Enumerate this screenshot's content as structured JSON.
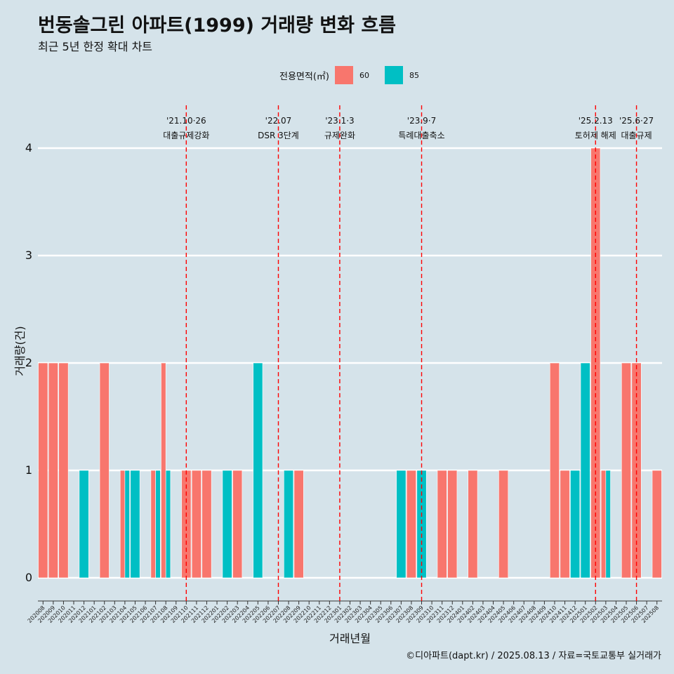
{
  "title": "번동솔그린 아파트(1999) 거래량 변화 흐름",
  "subtitle": "최근 5년 한정 확대 차트",
  "caption": "©디아파트(dapt.kr) / 2025.08.13 / 자료=국토교통부 실거래가",
  "colors": {
    "background": "#d5e3ea",
    "s60": "#f8766d",
    "s85": "#00bfc4",
    "event_line": "#ff0000",
    "grid": "#ffffff"
  },
  "legend": {
    "title": "전용면적(㎡)",
    "items": [
      {
        "label": "60",
        "color": "#f8766d"
      },
      {
        "label": "85",
        "color": "#00bfc4"
      }
    ]
  },
  "chart_data": {
    "type": "bar",
    "xlabel": "거래년월",
    "ylabel": "거래량(건)",
    "ylim": [
      0,
      4
    ],
    "yticks": [
      0,
      1,
      2,
      3,
      4
    ],
    "grid": true,
    "legend_position": "top",
    "categories": [
      "202008",
      "202009",
      "202010",
      "202011",
      "202012",
      "202101",
      "202102",
      "202103",
      "202104",
      "202105",
      "202106",
      "202107",
      "202108",
      "202109",
      "202110",
      "202111",
      "202112",
      "202201",
      "202202",
      "202203",
      "202204",
      "202205",
      "202206",
      "202207",
      "202208",
      "202209",
      "202210",
      "202211",
      "202212",
      "202301",
      "202302",
      "202303",
      "202304",
      "202305",
      "202306",
      "202307",
      "202308",
      "202309",
      "202310",
      "202311",
      "202312",
      "202401",
      "202402",
      "202403",
      "202404",
      "202405",
      "202406",
      "202407",
      "202408",
      "202409",
      "202410",
      "202411",
      "202412",
      "202501",
      "202502",
      "202503",
      "202504",
      "202505",
      "202506",
      "202507",
      "202508"
    ],
    "series": [
      {
        "name": "60",
        "values": [
          2,
          2,
          2,
          0,
          0,
          0,
          2,
          0,
          1,
          0,
          0,
          1,
          2,
          0,
          1,
          1,
          1,
          0,
          0,
          1,
          0,
          0,
          0,
          0,
          0,
          1,
          0,
          0,
          0,
          0,
          0,
          0,
          0,
          0,
          0,
          0,
          1,
          0,
          0,
          1,
          1,
          0,
          1,
          0,
          0,
          1,
          0,
          0,
          0,
          0,
          2,
          1,
          0,
          0,
          4,
          1,
          0,
          2,
          2,
          0,
          1
        ]
      },
      {
        "name": "85",
        "values": [
          0,
          0,
          0,
          0,
          1,
          0,
          0,
          0,
          1,
          1,
          0,
          1,
          1,
          0,
          0,
          0,
          0,
          0,
          1,
          0,
          0,
          2,
          0,
          0,
          1,
          0,
          0,
          0,
          0,
          0,
          0,
          0,
          0,
          0,
          0,
          1,
          0,
          1,
          0,
          0,
          0,
          0,
          0,
          0,
          0,
          0,
          0,
          0,
          0,
          0,
          0,
          0,
          1,
          2,
          0,
          1,
          0,
          0,
          0,
          0,
          0
        ]
      }
    ],
    "events": [
      {
        "month": "202110",
        "date": "'21.10·26",
        "label": "대출규제강화"
      },
      {
        "month": "202207",
        "date": "'22.07",
        "label": "DSR 3단계"
      },
      {
        "month": "202301",
        "date": "'23.1·3",
        "label": "규제완화"
      },
      {
        "month": "202309",
        "date": "'23.9·7",
        "label": "특례대출축소"
      },
      {
        "month": "202502",
        "date": "'25.2.13",
        "label": "토허제 해제"
      },
      {
        "month": "202506",
        "date": "'25.6·27",
        "label": "대출규제"
      }
    ]
  }
}
